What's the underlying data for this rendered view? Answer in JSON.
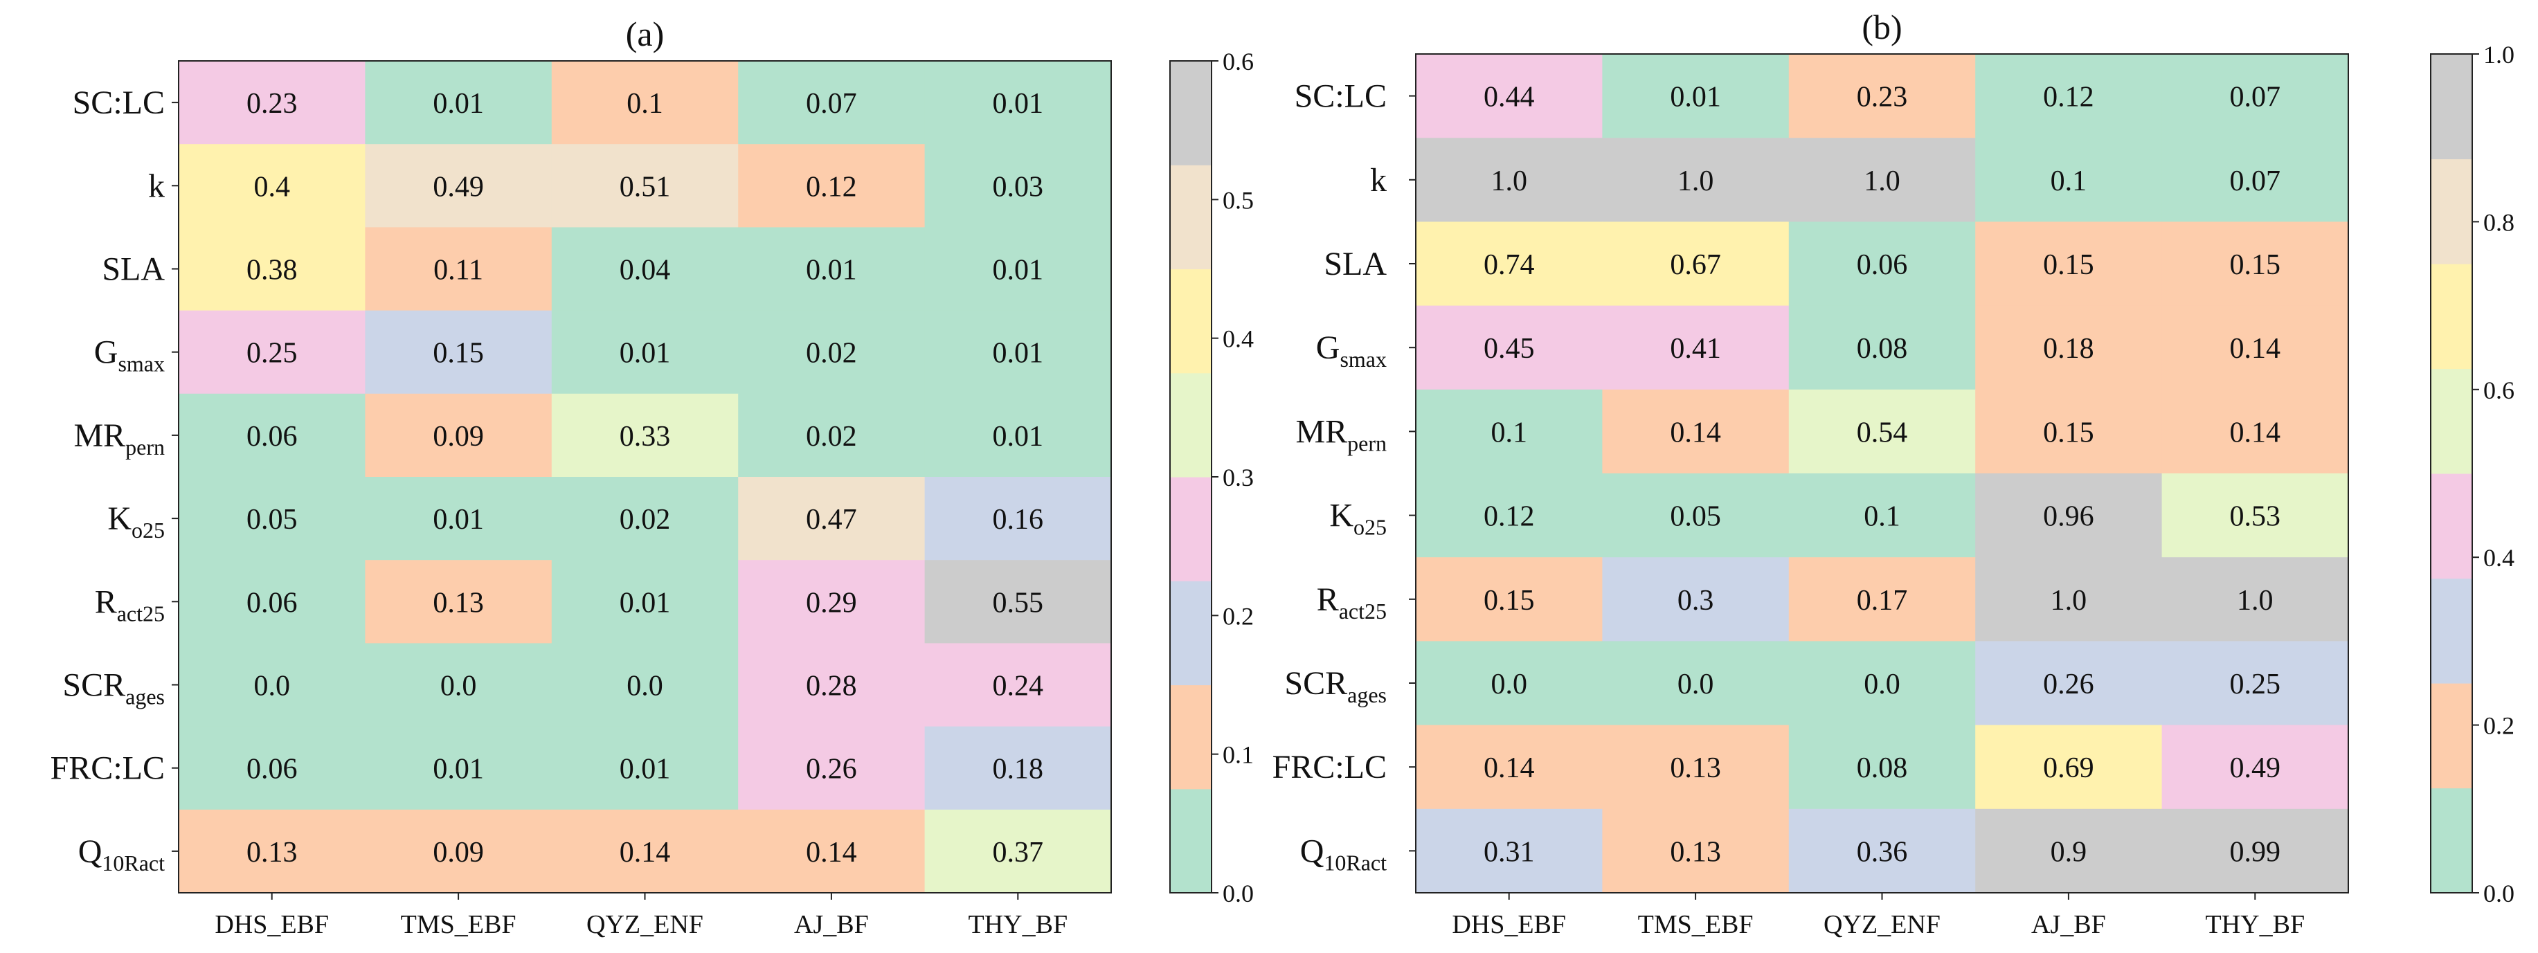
{
  "palette": {
    "teal": "#b3e2cd",
    "salmon": "#fdcdac",
    "lavender": "#cbd5e8",
    "pink": "#f4cae4",
    "lightgreen": "#e6f5c9",
    "yellow": "#fff2ae",
    "beige": "#f1e2cc",
    "gray": "#cccccc"
  },
  "chart_data": [
    {
      "type": "heatmap",
      "title": "(a)",
      "columns": [
        "DHS_EBF",
        "TMS_EBF",
        "QYZ_ENF",
        "AJ_BF",
        "THY_BF"
      ],
      "rows": [
        {
          "base": "SC:LC",
          "sub": ""
        },
        {
          "base": "k",
          "sub": ""
        },
        {
          "base": "SLA",
          "sub": ""
        },
        {
          "base": "G",
          "sub": "smax"
        },
        {
          "base": "MR",
          "sub": "pern"
        },
        {
          "base": "K",
          "sub": "o25"
        },
        {
          "base": "R",
          "sub": "act25"
        },
        {
          "base": "SCR",
          "sub": "ages"
        },
        {
          "base": "FRC:LC",
          "sub": ""
        },
        {
          "base": "Q",
          "sub": "10Ract"
        }
      ],
      "values": [
        [
          0.23,
          0.01,
          0.1,
          0.07,
          0.01
        ],
        [
          0.4,
          0.49,
          0.51,
          0.12,
          0.03
        ],
        [
          0.38,
          0.11,
          0.04,
          0.01,
          0.01
        ],
        [
          0.25,
          0.15,
          0.01,
          0.02,
          0.01
        ],
        [
          0.06,
          0.09,
          0.33,
          0.02,
          0.01
        ],
        [
          0.05,
          0.01,
          0.02,
          0.47,
          0.16
        ],
        [
          0.06,
          0.13,
          0.01,
          0.29,
          0.55
        ],
        [
          0.0,
          0.0,
          0.0,
          0.28,
          0.24
        ],
        [
          0.06,
          0.01,
          0.01,
          0.26,
          0.18
        ],
        [
          0.13,
          0.09,
          0.14,
          0.14,
          0.37
        ]
      ],
      "labels": [
        [
          "0.23",
          "0.01",
          "0.1",
          "0.07",
          "0.01"
        ],
        [
          "0.4",
          "0.49",
          "0.51",
          "0.12",
          "0.03"
        ],
        [
          "0.38",
          "0.11",
          "0.04",
          "0.01",
          "0.01"
        ],
        [
          "0.25",
          "0.15",
          "0.01",
          "0.02",
          "0.01"
        ],
        [
          "0.06",
          "0.09",
          "0.33",
          "0.02",
          "0.01"
        ],
        [
          "0.05",
          "0.01",
          "0.02",
          "0.47",
          "0.16"
        ],
        [
          "0.06",
          "0.13",
          "0.01",
          "0.29",
          "0.55"
        ],
        [
          "0.0",
          "0.0",
          "0.0",
          "0.28",
          "0.24"
        ],
        [
          "0.06",
          "0.01",
          "0.01",
          "0.26",
          "0.18"
        ],
        [
          "0.13",
          "0.09",
          "0.14",
          "0.14",
          "0.37"
        ]
      ],
      "colorbar": {
        "range": [
          0.0,
          0.6
        ],
        "ticks": [
          "0.0",
          "0.1",
          "0.2",
          "0.3",
          "0.4",
          "0.5",
          "0.6"
        ],
        "colors": [
          "teal",
          "salmon",
          "lavender",
          "pink",
          "lightgreen",
          "yellow",
          "beige",
          "gray"
        ]
      }
    },
    {
      "type": "heatmap",
      "title": "(b)",
      "columns": [
        "DHS_EBF",
        "TMS_EBF",
        "QYZ_ENF",
        "AJ_BF",
        "THY_BF"
      ],
      "rows": [
        {
          "base": "SC:LC",
          "sub": ""
        },
        {
          "base": "k",
          "sub": ""
        },
        {
          "base": "SLA",
          "sub": ""
        },
        {
          "base": "G",
          "sub": "smax"
        },
        {
          "base": "MR",
          "sub": "pern"
        },
        {
          "base": "K",
          "sub": "o25"
        },
        {
          "base": "R",
          "sub": "act25"
        },
        {
          "base": "SCR",
          "sub": "ages"
        },
        {
          "base": "FRC:LC",
          "sub": ""
        },
        {
          "base": "Q",
          "sub": "10Ract"
        }
      ],
      "values": [
        [
          0.44,
          0.01,
          0.23,
          0.12,
          0.07
        ],
        [
          1.0,
          1.0,
          1.0,
          0.1,
          0.07
        ],
        [
          0.74,
          0.67,
          0.06,
          0.15,
          0.15
        ],
        [
          0.45,
          0.41,
          0.08,
          0.18,
          0.14
        ],
        [
          0.1,
          0.14,
          0.54,
          0.15,
          0.14
        ],
        [
          0.12,
          0.05,
          0.1,
          0.96,
          0.53
        ],
        [
          0.15,
          0.3,
          0.17,
          1.0,
          1.0
        ],
        [
          0.0,
          0.0,
          0.0,
          0.26,
          0.25
        ],
        [
          0.14,
          0.13,
          0.08,
          0.69,
          0.49
        ],
        [
          0.31,
          0.13,
          0.36,
          0.9,
          0.99
        ]
      ],
      "labels": [
        [
          "0.44",
          "0.01",
          "0.23",
          "0.12",
          "0.07"
        ],
        [
          "1.0",
          "1.0",
          "1.0",
          "0.1",
          "0.07"
        ],
        [
          "0.74",
          "0.67",
          "0.06",
          "0.15",
          "0.15"
        ],
        [
          "0.45",
          "0.41",
          "0.08",
          "0.18",
          "0.14"
        ],
        [
          "0.1",
          "0.14",
          "0.54",
          "0.15",
          "0.14"
        ],
        [
          "0.12",
          "0.05",
          "0.1",
          "0.96",
          "0.53"
        ],
        [
          "0.15",
          "0.3",
          "0.17",
          "1.0",
          "1.0"
        ],
        [
          "0.0",
          "0.0",
          "0.0",
          "0.26",
          "0.25"
        ],
        [
          "0.14",
          "0.13",
          "0.08",
          "0.69",
          "0.49"
        ],
        [
          "0.31",
          "0.13",
          "0.36",
          "0.9",
          "0.99"
        ]
      ],
      "colorbar": {
        "range": [
          0.0,
          1.0
        ],
        "ticks": [
          "0.0",
          "0.2",
          "0.4",
          "0.6",
          "0.8",
          "1.0"
        ],
        "colors": [
          "teal",
          "salmon",
          "lavender",
          "pink",
          "lightgreen",
          "yellow",
          "beige",
          "gray"
        ]
      }
    }
  ]
}
